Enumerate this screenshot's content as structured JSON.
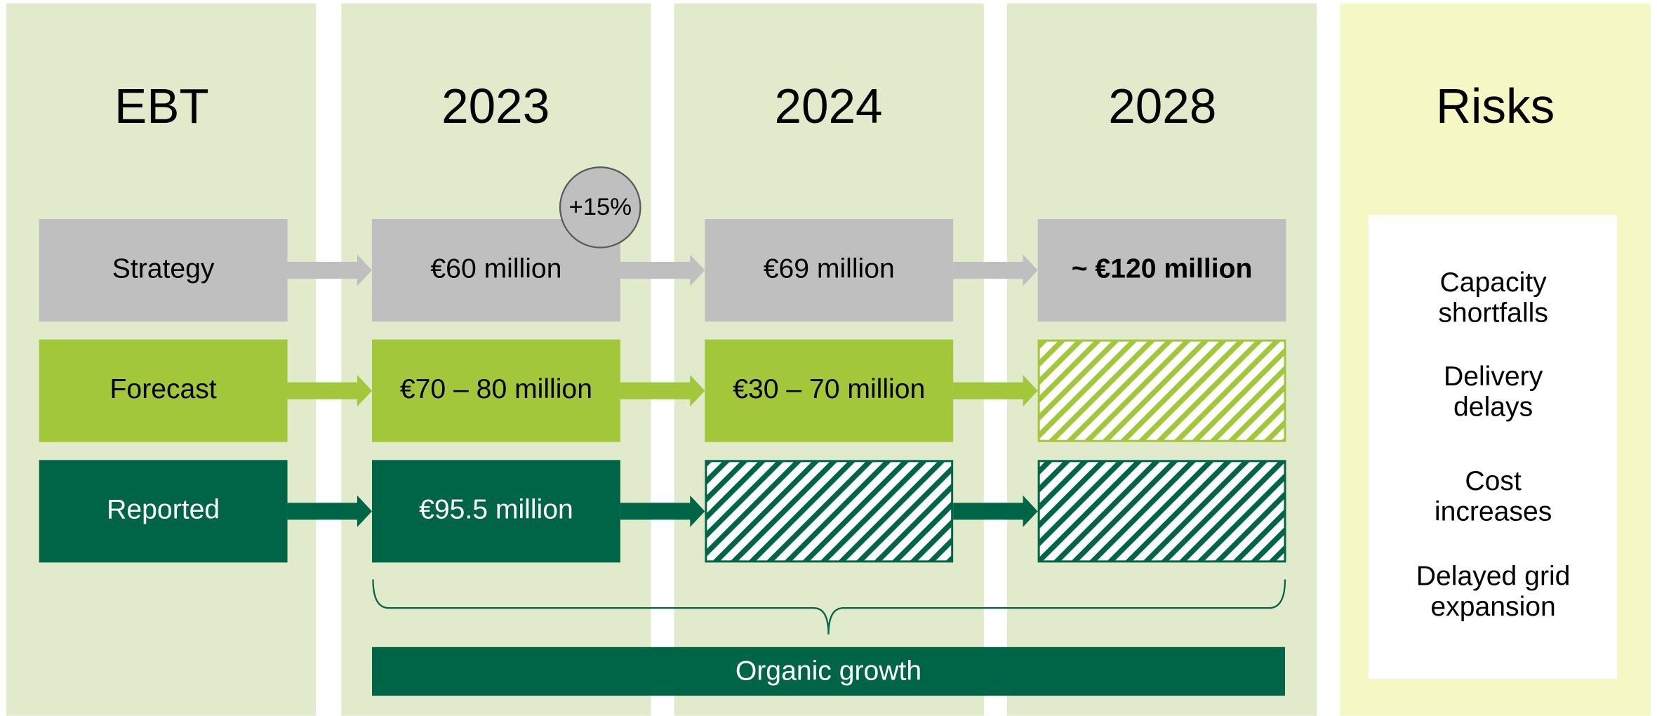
{
  "headers": [
    "EBT",
    "2023",
    "2024",
    "2028"
  ],
  "rows": [
    {
      "label": "Strategy",
      "cells": [
        "€60 million",
        "€69 million",
        "~ €120 million"
      ]
    },
    {
      "label": "Forecast",
      "cells": [
        "€70 – 80 million",
        "€30 – 70 million"
      ]
    },
    {
      "label": "Reported",
      "cells": [
        "€95.5 million"
      ]
    }
  ],
  "badge": "+15%",
  "organic_growth": "Organic growth",
  "risks": {
    "title": "Risks",
    "items": [
      [
        "Capacity",
        "shortfalls"
      ],
      [
        "Delivery",
        "delays"
      ],
      [
        "Cost",
        "increases"
      ],
      [
        "Delayed grid",
        "expansion"
      ]
    ]
  }
}
